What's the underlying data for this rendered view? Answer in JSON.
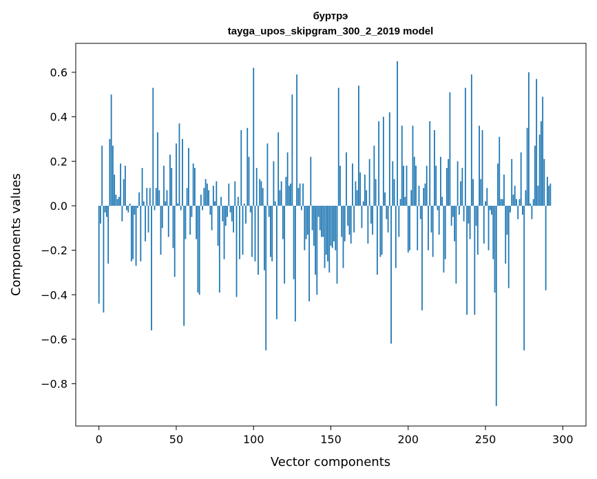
{
  "chart_data": {
    "type": "bar",
    "title": "буртрэ",
    "subtitle": "tayga_upos_skipgram_300_2_2019 model",
    "xlabel": "Vector components",
    "ylabel": "Components values",
    "xlim": [
      -15,
      315
    ],
    "ylim": [
      -0.99,
      0.73
    ],
    "xticks": [
      0,
      50,
      100,
      150,
      200,
      250,
      300
    ],
    "yticks": [
      -0.8,
      -0.6,
      -0.4,
      -0.2,
      0.0,
      0.2,
      0.4,
      0.6
    ],
    "ytick_labels": [
      "−0.8",
      "−0.6",
      "−0.4",
      "−0.2",
      "0.0",
      "0.2",
      "0.4",
      "0.6"
    ],
    "grid": false,
    "bar_color": "#1f77b4",
    "values": [
      -0.44,
      -0.08,
      0.27,
      -0.48,
      -0.03,
      -0.05,
      -0.26,
      0.3,
      0.5,
      0.27,
      0.14,
      0.05,
      0.03,
      0.04,
      0.19,
      -0.07,
      0.12,
      0.18,
      -0.02,
      -0.03,
      0.01,
      -0.25,
      -0.24,
      -0.04,
      -0.27,
      -0.01,
      0.06,
      -0.25,
      0.17,
      0.02,
      -0.16,
      0.08,
      -0.12,
      0.08,
      -0.56,
      0.53,
      -0.02,
      0.08,
      0.33,
      0.07,
      -0.22,
      -0.1,
      0.18,
      0.02,
      0.07,
      -0.14,
      0.23,
      0.17,
      -0.19,
      -0.32,
      0.28,
      0.01,
      0.37,
      -0.02,
      0.3,
      -0.54,
      -0.15,
      0.08,
      0.26,
      -0.13,
      -0.05,
      0.19,
      0.17,
      -0.15,
      -0.39,
      -0.4,
      0.05,
      -0.02,
      0.08,
      0.12,
      0.1,
      0.07,
      -0.04,
      -0.11,
      0.09,
      0.02,
      0.11,
      -0.18,
      -0.39,
      0.04,
      -0.07,
      -0.24,
      -0.09,
      -0.05,
      0.1,
      -0.03,
      -0.07,
      -0.12,
      0.11,
      -0.41,
      0.04,
      -0.24,
      0.34,
      -0.22,
      0.01,
      -0.08,
      0.35,
      0.22,
      -0.03,
      -0.23,
      0.62,
      -0.25,
      0.17,
      -0.31,
      0.12,
      0.11,
      0.08,
      -0.29,
      -0.65,
      0.28,
      -0.05,
      -0.23,
      -0.25,
      0.2,
      0.02,
      -0.51,
      0.33,
      0.07,
      0.11,
      -0.15,
      -0.35,
      0.13,
      0.24,
      0.09,
      0.1,
      0.5,
      -0.33,
      -0.52,
      0.59,
      0.08,
      0.1,
      -0.02,
      0.1,
      -0.2,
      -0.15,
      -0.13,
      -0.43,
      0.22,
      -0.11,
      -0.18,
      -0.31,
      -0.4,
      -0.05,
      -0.11,
      -0.14,
      -0.14,
      -0.28,
      -0.22,
      -0.25,
      -0.3,
      -0.18,
      -0.19,
      -0.16,
      -0.2,
      -0.35,
      0.53,
      0.18,
      -0.14,
      -0.28,
      -0.16,
      0.24,
      -0.09,
      -0.13,
      -0.17,
      0.19,
      -0.12,
      0.11,
      0.07,
      0.54,
      0.15,
      -0.1,
      0.02,
      0.14,
      0.07,
      -0.17,
      0.21,
      -0.08,
      -0.13,
      0.27,
      0.12,
      -0.31,
      0.38,
      -0.23,
      -0.22,
      0.4,
      0.06,
      -0.06,
      -0.12,
      0.42,
      -0.62,
      0.2,
      0.12,
      -0.28,
      0.65,
      -0.14,
      0.03,
      0.36,
      0.18,
      0.04,
      0.18,
      -0.21,
      -0.2,
      0.07,
      0.36,
      0.22,
      0.18,
      -0.2,
      0.09,
      -0.06,
      -0.47,
      0.08,
      0.1,
      0.18,
      -0.2,
      0.38,
      -0.12,
      -0.23,
      0.34,
      0.18,
      -0.02,
      -0.13,
      0.22,
      0.04,
      -0.3,
      -0.24,
      0.17,
      0.21,
      0.51,
      -0.09,
      -0.05,
      -0.16,
      -0.35,
      0.2,
      -0.04,
      0.11,
      0.17,
      -0.07,
      0.53,
      -0.49,
      -0.08,
      -0.15,
      0.59,
      0.12,
      -0.49,
      -0.09,
      -0.22,
      0.36,
      0.12,
      0.34,
      -0.17,
      0.02,
      0.08,
      -0.2,
      -0.02,
      -0.04,
      -0.24,
      -0.39,
      -0.9,
      0.19,
      0.31,
      0.03,
      0.03,
      0.14,
      -0.26,
      -0.13,
      -0.37,
      -0.03,
      0.21,
      0.05,
      0.09,
      0.03,
      -0.06,
      0.03,
      0.24,
      -0.04,
      -0.65,
      0.07,
      0.35,
      0.6,
      0.01,
      -0.06,
      0.03,
      0.27,
      0.57,
      0.09,
      0.32,
      0.38,
      0.49,
      0.21,
      -0.38,
      0.13,
      0.09,
      0.1
    ]
  }
}
